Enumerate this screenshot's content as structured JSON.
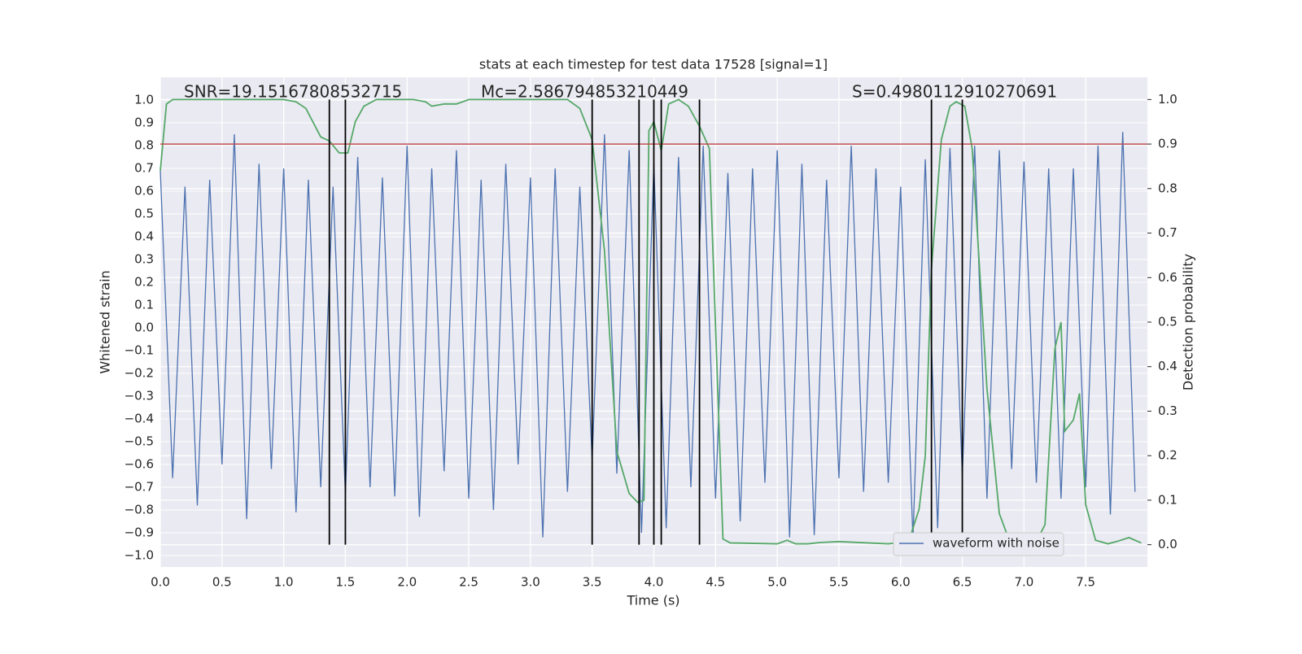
{
  "chart_data": {
    "type": "line",
    "title": "stats at each timestep for test data 17528 [signal=1]",
    "xlabel": "Time (s)",
    "ylabel": "Whitened strain",
    "y2label": "Detection probability",
    "annotations": [
      "SNR=19.15167808532715",
      "Mc=2.586794853210449",
      "S=0.4980112910270691"
    ],
    "xlim": [
      0,
      8.0
    ],
    "ylim": [
      -1.05,
      1.1
    ],
    "y2lim": [
      -0.05,
      1.05
    ],
    "xticks": [
      {
        "value": 0,
        "label": "0.0"
      },
      0.5,
      {
        "value": 1,
        "label": "1.0"
      },
      1.5,
      {
        "value": 2,
        "label": "2.0"
      },
      2.5,
      {
        "value": 3,
        "label": "3.0"
      },
      3.5,
      {
        "value": 4,
        "label": "4.0"
      },
      4.5,
      {
        "value": 5,
        "label": "5.0"
      },
      5.5,
      {
        "value": 6,
        "label": "6.0"
      },
      6.5,
      {
        "value": 7,
        "label": "7.0"
      },
      7.5
    ],
    "yticks": [
      {
        "value": -1,
        "label": "−1.0"
      },
      {
        "value": -0.9,
        "label": "−0.9"
      },
      {
        "value": -0.8,
        "label": "−0.8"
      },
      {
        "value": -0.7,
        "label": "−0.7"
      },
      {
        "value": -0.6,
        "label": "−0.6"
      },
      {
        "value": -0.5,
        "label": "−0.5"
      },
      {
        "value": -0.4,
        "label": "−0.4"
      },
      {
        "value": -0.3,
        "label": "−0.3"
      },
      {
        "value": -0.2,
        "label": "−0.2"
      },
      {
        "value": -0.1,
        "label": "−0.1"
      },
      {
        "value": 0,
        "label": "0.0"
      },
      0.1,
      0.2,
      0.3,
      0.4,
      0.5,
      0.6,
      0.7,
      0.8,
      0.9,
      {
        "value": 1,
        "label": "1.0"
      }
    ],
    "y2ticks": [
      {
        "value": 0,
        "label": "0.0"
      },
      0.1,
      0.2,
      0.3,
      0.4,
      0.5,
      0.6,
      0.7,
      0.8,
      0.9,
      {
        "value": 1,
        "label": "1.0"
      }
    ],
    "grid": true,
    "legend": "lower right",
    "series": [
      {
        "name": "waveform with noise",
        "color": "#4c72b0",
        "x": [
          0.0,
          0.1,
          0.2,
          0.3,
          0.4,
          0.5,
          0.6,
          0.7,
          0.8,
          0.9,
          1.0,
          1.1,
          1.2,
          1.3,
          1.4,
          1.5,
          1.6,
          1.7,
          1.8,
          1.9,
          2.0,
          2.1,
          2.2,
          2.3,
          2.4,
          2.5,
          2.6,
          2.7,
          2.8,
          2.9,
          3.0,
          3.1,
          3.2,
          3.3,
          3.4,
          3.5,
          3.6,
          3.7,
          3.8,
          3.9,
          4.0,
          4.1,
          4.2,
          4.3,
          4.4,
          4.5,
          4.6,
          4.7,
          4.8,
          4.9,
          5.0,
          5.1,
          5.2,
          5.3,
          5.4,
          5.5,
          5.6,
          5.7,
          5.8,
          5.9,
          6.0,
          6.1,
          6.2,
          6.3,
          6.4,
          6.5,
          6.6,
          6.7,
          6.8,
          6.9,
          7.0,
          7.1,
          7.2,
          7.3,
          7.4,
          7.5,
          7.6,
          7.7,
          7.8,
          7.9
        ],
        "values": [
          0.69,
          -0.66,
          0.62,
          -0.78,
          0.65,
          -0.6,
          0.85,
          -0.84,
          0.72,
          -0.62,
          0.7,
          -0.81,
          0.65,
          -0.7,
          0.62,
          -0.73,
          0.75,
          -0.7,
          0.66,
          -0.74,
          0.8,
          -0.83,
          0.7,
          -0.63,
          0.78,
          -0.75,
          0.65,
          -0.8,
          0.72,
          -0.6,
          0.66,
          -0.92,
          0.7,
          -0.72,
          0.62,
          -0.58,
          0.85,
          -0.64,
          0.78,
          -0.9,
          0.72,
          -0.88,
          0.75,
          -0.7,
          0.8,
          -0.75,
          0.68,
          -0.85,
          0.7,
          -0.68,
          0.78,
          -0.92,
          0.72,
          -0.91,
          0.65,
          -0.66,
          0.8,
          -0.72,
          0.7,
          -0.68,
          0.62,
          -0.93,
          0.74,
          -0.88,
          0.79,
          -0.65,
          0.8,
          -0.75,
          0.78,
          -0.62,
          0.73,
          -0.68,
          0.7,
          -0.75,
          0.7,
          -0.7,
          0.8,
          -0.82,
          0.86,
          -0.72
        ]
      },
      {
        "color": "#55a868",
        "axis": "y2",
        "x": [
          0,
          0.05,
          0.1,
          1.0,
          1.1,
          1.18,
          1.3,
          1.37,
          1.45,
          1.52,
          1.58,
          1.65,
          1.75,
          2.05,
          2.15,
          2.2,
          2.3,
          2.4,
          2.5,
          3.3,
          3.4,
          3.5,
          3.6,
          3.7,
          3.8,
          3.87,
          3.92,
          3.96,
          4.0,
          4.06,
          4.12,
          4.2,
          4.28,
          4.37,
          4.45,
          4.5,
          4.56,
          4.62,
          5.0,
          5.08,
          5.15,
          5.25,
          5.35,
          5.5,
          5.9,
          6.0,
          6.08,
          6.15,
          6.2,
          6.25,
          6.33,
          6.4,
          6.45,
          6.52,
          6.58,
          6.7,
          6.8,
          6.88,
          6.95,
          7.1,
          7.17,
          7.25,
          7.3,
          7.33,
          7.4,
          7.45,
          7.5,
          7.58,
          7.68,
          7.75,
          7.85,
          7.95
        ],
        "values": [
          0.84,
          0.99,
          1.0,
          1.0,
          0.995,
          0.98,
          0.916,
          0.907,
          0.88,
          0.88,
          0.95,
          0.985,
          1.0,
          1.0,
          0.995,
          0.985,
          0.99,
          0.99,
          1.0,
          1.0,
          0.98,
          0.91,
          0.66,
          0.21,
          0.115,
          0.095,
          0.1,
          0.93,
          0.95,
          0.885,
          0.99,
          1.0,
          0.985,
          0.94,
          0.89,
          0.49,
          0.013,
          0.004,
          0.002,
          0.01,
          0.002,
          0.002,
          0.005,
          0.007,
          0.002,
          0.005,
          0.02,
          0.08,
          0.2,
          0.62,
          0.91,
          0.985,
          0.995,
          0.985,
          0.89,
          0.35,
          0.07,
          0.01,
          0.002,
          0.007,
          0.045,
          0.44,
          0.5,
          0.255,
          0.28,
          0.34,
          0.09,
          0.01,
          0.002,
          0.007,
          0.016,
          0.004
        ]
      }
    ],
    "threshold": {
      "value": 0.9,
      "axis": "y2",
      "color": "#c44e52"
    },
    "vlines": {
      "x": [
        1.37,
        1.5,
        3.5,
        3.88,
        4.0,
        4.06,
        4.37,
        6.25,
        6.5
      ],
      "ymin": 0,
      "ymax": 1,
      "axis": "y2",
      "color": "#000000"
    }
  }
}
